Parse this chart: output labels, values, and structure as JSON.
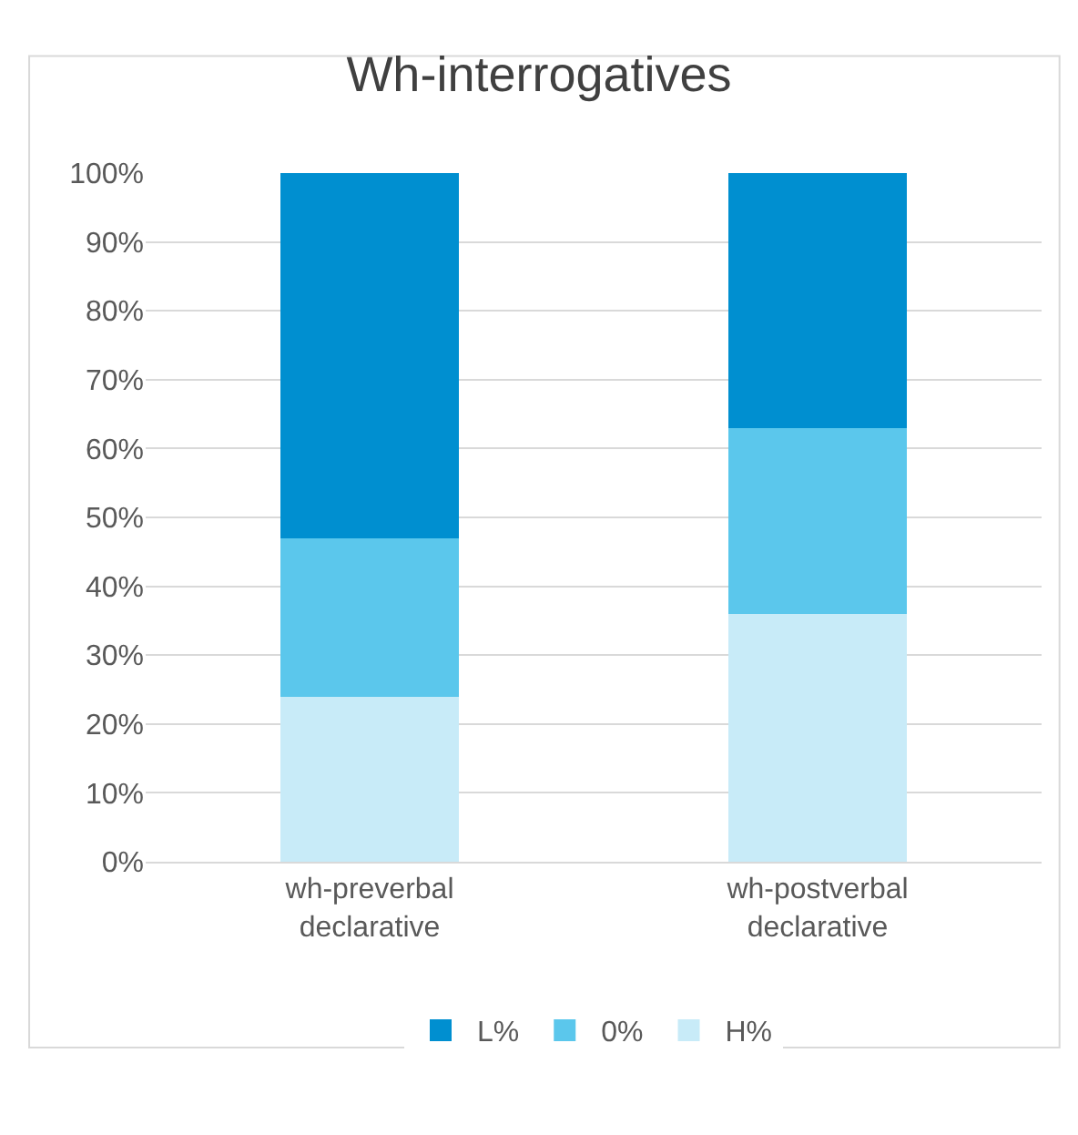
{
  "chart_data": {
    "type": "bar",
    "title": "Wh-interrogatives",
    "stacked": true,
    "categories": [
      "wh-preverbal declarative",
      "wh-postverbal declarative"
    ],
    "series": [
      {
        "name": "H%",
        "color": "#c8ebf8",
        "values": [
          24,
          36
        ]
      },
      {
        "name": "0%",
        "color": "#5bc7ec",
        "values": [
          23,
          27
        ]
      },
      {
        "name": "L%",
        "color": "#008fd0",
        "values": [
          53,
          37
        ]
      }
    ],
    "ylim": [
      0,
      100
    ],
    "yticks": [
      {
        "value": 0,
        "label": "0%"
      },
      {
        "value": 10,
        "label": "10%"
      },
      {
        "value": 20,
        "label": "20%"
      },
      {
        "value": 30,
        "label": "30%"
      },
      {
        "value": 40,
        "label": "40%"
      },
      {
        "value": 50,
        "label": "50%"
      },
      {
        "value": 60,
        "label": "60%"
      },
      {
        "value": 70,
        "label": "70%"
      },
      {
        "value": 80,
        "label": "80%"
      },
      {
        "value": 90,
        "label": "90%"
      },
      {
        "value": 100,
        "label": "100%"
      }
    ],
    "grid": "y",
    "legend": "bottom"
  }
}
